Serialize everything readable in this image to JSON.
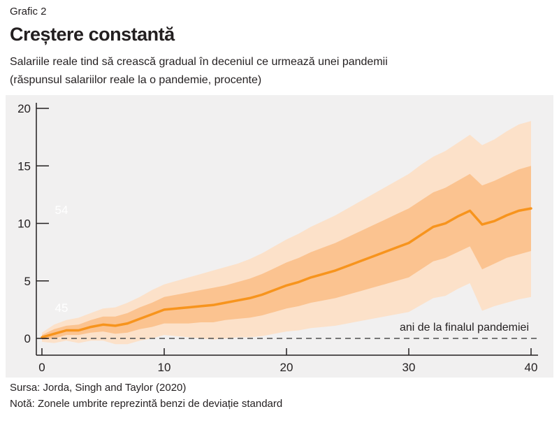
{
  "header": {
    "figure_label": "Grafic 2",
    "title": "Creștere constantă",
    "subtitle": "Salariile reale tind să crească gradual în deceniul ce urmează unei pandemii",
    "subtitle_units": "(răspunsul salariilor reale la o pandemie, procente)"
  },
  "footer": {
    "source": "Sursa: Jorda, Singh and Taylor (2020)",
    "note": "Notă: Zonele umbrite reprezintă benzi de deviație standard"
  },
  "colors": {
    "panel_bg": "#f1f0f0",
    "line": "#f7941d",
    "band_inner": "#fbc08a",
    "band_outer": "#fddfc4",
    "axis": "#231f20",
    "zero_line": "#4d4d4d"
  },
  "chart_data": {
    "type": "line",
    "title": "Creștere constantă",
    "xlabel": "",
    "ylabel": "",
    "xlim": [
      0,
      40
    ],
    "ylim": [
      0,
      20
    ],
    "x_ticks": [
      0,
      10,
      20,
      30,
      40
    ],
    "y_ticks": [
      0,
      5,
      10,
      15,
      20
    ],
    "grid": false,
    "annotation": "ani de la finalul pandemiei",
    "watermark_labels": [
      "54",
      "45"
    ],
    "x": [
      0,
      1,
      2,
      3,
      4,
      5,
      6,
      7,
      8,
      9,
      10,
      11,
      12,
      13,
      14,
      15,
      16,
      17,
      18,
      19,
      20,
      21,
      22,
      23,
      24,
      25,
      26,
      27,
      28,
      29,
      30,
      31,
      32,
      33,
      34,
      35,
      36,
      37,
      38,
      39,
      40
    ],
    "series": [
      {
        "values": [
          0.1,
          0.4,
          0.7,
          0.7,
          1.0,
          1.2,
          1.1,
          1.3,
          1.7,
          2.1,
          2.5,
          2.6,
          2.7,
          2.8,
          2.9,
          3.1,
          3.3,
          3.5,
          3.8,
          4.2,
          4.6,
          4.9,
          5.3,
          5.6,
          5.9,
          6.3,
          6.7,
          7.1,
          7.5,
          7.9,
          8.3,
          9.0,
          9.7,
          10.0,
          10.6,
          11.1,
          9.9,
          10.2,
          10.7,
          11.1,
          11.3
        ],
        "band_inner_upper": [
          0.3,
          0.8,
          1.1,
          1.2,
          1.6,
          1.9,
          1.9,
          2.2,
          2.7,
          3.1,
          3.6,
          3.8,
          4.0,
          4.2,
          4.4,
          4.6,
          4.9,
          5.2,
          5.6,
          6.1,
          6.6,
          7.0,
          7.5,
          7.9,
          8.3,
          8.8,
          9.3,
          9.8,
          10.3,
          10.8,
          11.3,
          12.0,
          12.7,
          13.1,
          13.7,
          14.3,
          13.3,
          13.7,
          14.2,
          14.7,
          15.0
        ],
        "band_inner_lower": [
          -0.1,
          0.0,
          0.3,
          0.3,
          0.5,
          0.6,
          0.4,
          0.5,
          0.8,
          1.0,
          1.3,
          1.3,
          1.3,
          1.4,
          1.4,
          1.6,
          1.7,
          1.8,
          2.0,
          2.3,
          2.6,
          2.8,
          3.1,
          3.3,
          3.5,
          3.8,
          4.1,
          4.4,
          4.7,
          5.0,
          5.3,
          6.0,
          6.7,
          7.0,
          7.5,
          8.0,
          6.0,
          6.5,
          7.0,
          7.3,
          7.6
        ],
        "band_outer_upper": [
          0.5,
          1.2,
          1.6,
          1.8,
          2.2,
          2.6,
          2.7,
          3.1,
          3.6,
          4.2,
          4.7,
          5.0,
          5.3,
          5.6,
          5.9,
          6.2,
          6.5,
          6.9,
          7.4,
          8.0,
          8.6,
          9.1,
          9.7,
          10.2,
          10.7,
          11.3,
          11.9,
          12.5,
          13.1,
          13.7,
          14.3,
          15.1,
          15.8,
          16.3,
          17.0,
          17.7,
          16.8,
          17.3,
          18.0,
          18.6,
          18.9
        ],
        "band_outer_lower": [
          -0.3,
          -0.4,
          -0.2,
          -0.4,
          -0.2,
          -0.2,
          -0.5,
          -0.5,
          -0.2,
          0.0,
          0.3,
          0.2,
          0.1,
          0.0,
          -0.1,
          0.0,
          0.1,
          0.1,
          0.2,
          0.4,
          0.6,
          0.7,
          0.9,
          1.0,
          1.1,
          1.3,
          1.5,
          1.7,
          1.9,
          2.1,
          2.3,
          2.9,
          3.5,
          3.7,
          4.3,
          4.8,
          2.4,
          2.8,
          3.1,
          3.4,
          3.6
        ]
      }
    ]
  }
}
